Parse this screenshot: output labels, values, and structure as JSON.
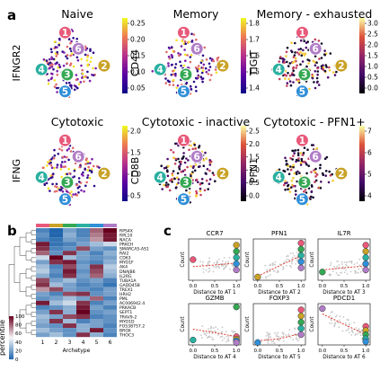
{
  "panel_labels": {
    "a": "a",
    "b": "b",
    "c": "c"
  },
  "archetype_colors": {
    "1": "#e8597a",
    "2": "#c9a227",
    "3": "#35a853",
    "4": "#2ab0a0",
    "5": "#2f8fd8",
    "6": "#b07cc6"
  },
  "umap_panels": [
    {
      "title": "Naive",
      "gene": "IFNGR2",
      "ticks": [
        "0.25",
        "0.20",
        "0.15",
        "0.10",
        "0.05"
      ],
      "label_color": "#ffffff"
    },
    {
      "title": "Memory",
      "gene": "CD44",
      "ticks": [
        "1.8",
        "1.7",
        "1.6",
        "1.5",
        "1.4"
      ],
      "label_color": "#ffffff"
    },
    {
      "title": "Memory - exhausted",
      "gene": "TIGIT",
      "ticks": [
        "3.0",
        "2.5",
        "2.0",
        "1.5",
        "1.0",
        "0.5",
        "0.0"
      ],
      "label_color": "#ffffff"
    },
    {
      "title": "Cytotoxic",
      "gene": "IFNG",
      "ticks": [
        "2.0",
        "1.5",
        "1.0",
        "0.5"
      ],
      "label_color": "#ffffff"
    },
    {
      "title": "Cytotoxic - inactive",
      "gene": "CD8B",
      "ticks": [
        "2.5",
        "2.0",
        "1.5",
        "1.0",
        "0.5",
        "0.0"
      ],
      "label_color": "#ffffff"
    },
    {
      "title": "Cytotoxic - PFN1+",
      "gene": "PFN1",
      "ticks": [
        "7",
        "6",
        "5",
        "4"
      ],
      "label_color": "#ffffff"
    }
  ],
  "heatmap": {
    "genes": [
      "RPS4X",
      "RPL10",
      "NACA",
      "PRKCH",
      "SMARCA5-AS1",
      "RAI2",
      "CD63",
      "MYO1F",
      "AK4",
      "DNAJB6",
      "IL2RG",
      "TUBA1A",
      "GADD45B",
      "TREX1",
      "HRH2",
      "PML",
      "AC006942.4",
      "PRKACB",
      "SEPT1",
      "TRAV9-2",
      "MYO1D",
      "FO538757.2",
      "BROX",
      "THOC3"
    ],
    "archetypes": [
      "1",
      "2",
      "3",
      "4",
      "5",
      "6"
    ],
    "xlabel": "Archetype",
    "colorbar_label": "percentile",
    "colorbar_ticks": [
      "100",
      "80",
      "60",
      "40",
      "20",
      "0"
    ],
    "values": [
      [
        10,
        0,
        20,
        10,
        80,
        100
      ],
      [
        15,
        0,
        25,
        10,
        75,
        95
      ],
      [
        10,
        5,
        20,
        15,
        70,
        95
      ],
      [
        95,
        5,
        10,
        20,
        30,
        40
      ],
      [
        90,
        10,
        15,
        85,
        20,
        15
      ],
      [
        80,
        15,
        90,
        20,
        10,
        25
      ],
      [
        40,
        100,
        30,
        20,
        15,
        20
      ],
      [
        20,
        90,
        95,
        15,
        10,
        25
      ],
      [
        30,
        10,
        85,
        20,
        90,
        35
      ],
      [
        35,
        15,
        95,
        15,
        85,
        30
      ],
      [
        25,
        10,
        90,
        20,
        80,
        25
      ],
      [
        85,
        20,
        30,
        15,
        20,
        10
      ],
      [
        90,
        30,
        20,
        10,
        15,
        5
      ],
      [
        70,
        85,
        20,
        15,
        10,
        20
      ],
      [
        20,
        10,
        85,
        90,
        15,
        20
      ],
      [
        15,
        20,
        30,
        20,
        80,
        10
      ],
      [
        95,
        30,
        40,
        90,
        10,
        20
      ],
      [
        10,
        15,
        25,
        95,
        20,
        10
      ],
      [
        20,
        90,
        25,
        100,
        15,
        20
      ],
      [
        30,
        20,
        85,
        90,
        10,
        15
      ],
      [
        25,
        90,
        30,
        10,
        20,
        15
      ],
      [
        20,
        15,
        90,
        25,
        20,
        10
      ],
      [
        30,
        20,
        15,
        25,
        95,
        15
      ],
      [
        20,
        30,
        15,
        90,
        25,
        10
      ]
    ]
  },
  "chart_data": [
    {
      "type": "scatter",
      "title": "CCR7",
      "xlabel": "Distance to AT 1",
      "ylabel": "Count",
      "xticks": [
        "0.0",
        "0.5",
        "1.0"
      ],
      "xlim": [
        -0.1,
        1.1
      ],
      "ylim": [
        0,
        1
      ],
      "trend": [
        [
          0.0,
          0.33
        ],
        [
          0.5,
          0.37
        ],
        [
          1.0,
          0.42
        ]
      ],
      "archetype_points": [
        {
          "archetype": "1",
          "x": 0.0,
          "y": 0.5
        },
        {
          "archetype": "2",
          "x": 1.0,
          "y": 0.85
        },
        {
          "archetype": "3",
          "x": 1.0,
          "y": 0.7
        },
        {
          "archetype": "4",
          "x": 1.0,
          "y": 0.55
        },
        {
          "archetype": "5",
          "x": 1.0,
          "y": 0.4
        },
        {
          "archetype": "6",
          "x": 1.0,
          "y": 0.25
        }
      ]
    },
    {
      "type": "scatter",
      "title": "PFN1",
      "xlabel": "Distance to AT 2",
      "ylabel": "Count",
      "xticks": [
        "0.0",
        "0.5",
        "1.0"
      ],
      "xlim": [
        -0.1,
        1.1
      ],
      "ylim": [
        0,
        1
      ],
      "trend": [
        [
          0.0,
          0.1
        ],
        [
          0.5,
          0.35
        ],
        [
          1.0,
          0.6
        ]
      ],
      "archetype_points": [
        {
          "archetype": "2",
          "x": 0.0,
          "y": 0.08
        },
        {
          "archetype": "1",
          "x": 1.0,
          "y": 0.9
        },
        {
          "archetype": "3",
          "x": 1.0,
          "y": 0.75
        },
        {
          "archetype": "4",
          "x": 1.0,
          "y": 0.6
        },
        {
          "archetype": "5",
          "x": 1.0,
          "y": 0.45
        },
        {
          "archetype": "6",
          "x": 1.0,
          "y": 0.3
        }
      ]
    },
    {
      "type": "scatter",
      "title": "IL7R",
      "xlabel": "Distance to AT 3",
      "ylabel": "Count",
      "xticks": [
        "0.0",
        "0.5",
        "1.0"
      ],
      "xlim": [
        -0.1,
        1.1
      ],
      "ylim": [
        0,
        1
      ],
      "trend": [
        [
          0.0,
          0.25
        ],
        [
          0.5,
          0.3
        ],
        [
          1.0,
          0.35
        ]
      ],
      "archetype_points": [
        {
          "archetype": "3",
          "x": 0.0,
          "y": 0.2
        },
        {
          "archetype": "1",
          "x": 1.0,
          "y": 0.85
        },
        {
          "archetype": "2",
          "x": 1.0,
          "y": 0.7
        },
        {
          "archetype": "4",
          "x": 1.0,
          "y": 0.55
        },
        {
          "archetype": "5",
          "x": 1.0,
          "y": 0.4
        },
        {
          "archetype": "6",
          "x": 1.0,
          "y": 0.25
        }
      ]
    },
    {
      "type": "scatter",
      "title": "GZMB",
      "xlabel": "Distance to AT 4",
      "ylabel": "Count",
      "xticks": [
        "0.0",
        "0.5",
        "1.0"
      ],
      "xlim": [
        -0.1,
        1.1
      ],
      "ylim": [
        0,
        1
      ],
      "trend": [
        [
          0.0,
          0.38
        ],
        [
          0.5,
          0.3
        ],
        [
          1.0,
          0.2
        ]
      ],
      "archetype_points": [
        {
          "archetype": "4",
          "x": 0.0,
          "y": 0.12
        },
        {
          "archetype": "3",
          "x": 1.0,
          "y": 0.92
        },
        {
          "archetype": "1",
          "x": 1.0,
          "y": 0.2
        },
        {
          "archetype": "2",
          "x": 1.0,
          "y": 0.14
        },
        {
          "archetype": "5",
          "x": 1.0,
          "y": 0.1
        },
        {
          "archetype": "6",
          "x": 1.0,
          "y": 0.06
        }
      ]
    },
    {
      "type": "scatter",
      "title": "FOXP3",
      "xlabel": "Distance to AT 5",
      "ylabel": "Count",
      "xticks": [
        "0.0",
        "0.5",
        "1.0"
      ],
      "xlim": [
        -0.1,
        1.1
      ],
      "ylim": [
        0,
        1
      ],
      "trend": [
        [
          0.0,
          0.1
        ],
        [
          0.5,
          0.15
        ],
        [
          1.0,
          0.28
        ]
      ],
      "archetype_points": [
        {
          "archetype": "5",
          "x": 0.0,
          "y": 0.06
        },
        {
          "archetype": "1",
          "x": 1.0,
          "y": 0.85
        },
        {
          "archetype": "2",
          "x": 1.0,
          "y": 0.7
        },
        {
          "archetype": "3",
          "x": 1.0,
          "y": 0.55
        },
        {
          "archetype": "4",
          "x": 1.0,
          "y": 0.4
        },
        {
          "archetype": "6",
          "x": 1.0,
          "y": 0.25
        }
      ]
    },
    {
      "type": "scatter",
      "title": "PDCD1",
      "xlabel": "Distance to AT 6",
      "ylabel": "Count",
      "xticks": [
        "0.0",
        "0.5",
        "1.0"
      ],
      "xlim": [
        -0.1,
        1.1
      ],
      "ylim": [
        0,
        1
      ],
      "trend": [
        [
          0.0,
          0.75
        ],
        [
          0.5,
          0.5
        ],
        [
          1.0,
          0.25
        ]
      ],
      "archetype_points": [
        {
          "archetype": "6",
          "x": 0.0,
          "y": 0.88
        },
        {
          "archetype": "1",
          "x": 1.0,
          "y": 0.45
        },
        {
          "archetype": "2",
          "x": 1.0,
          "y": 0.35
        },
        {
          "archetype": "3",
          "x": 1.0,
          "y": 0.25
        },
        {
          "archetype": "4",
          "x": 1.0,
          "y": 0.15
        },
        {
          "archetype": "5",
          "x": 1.0,
          "y": 0.08
        }
      ]
    }
  ]
}
